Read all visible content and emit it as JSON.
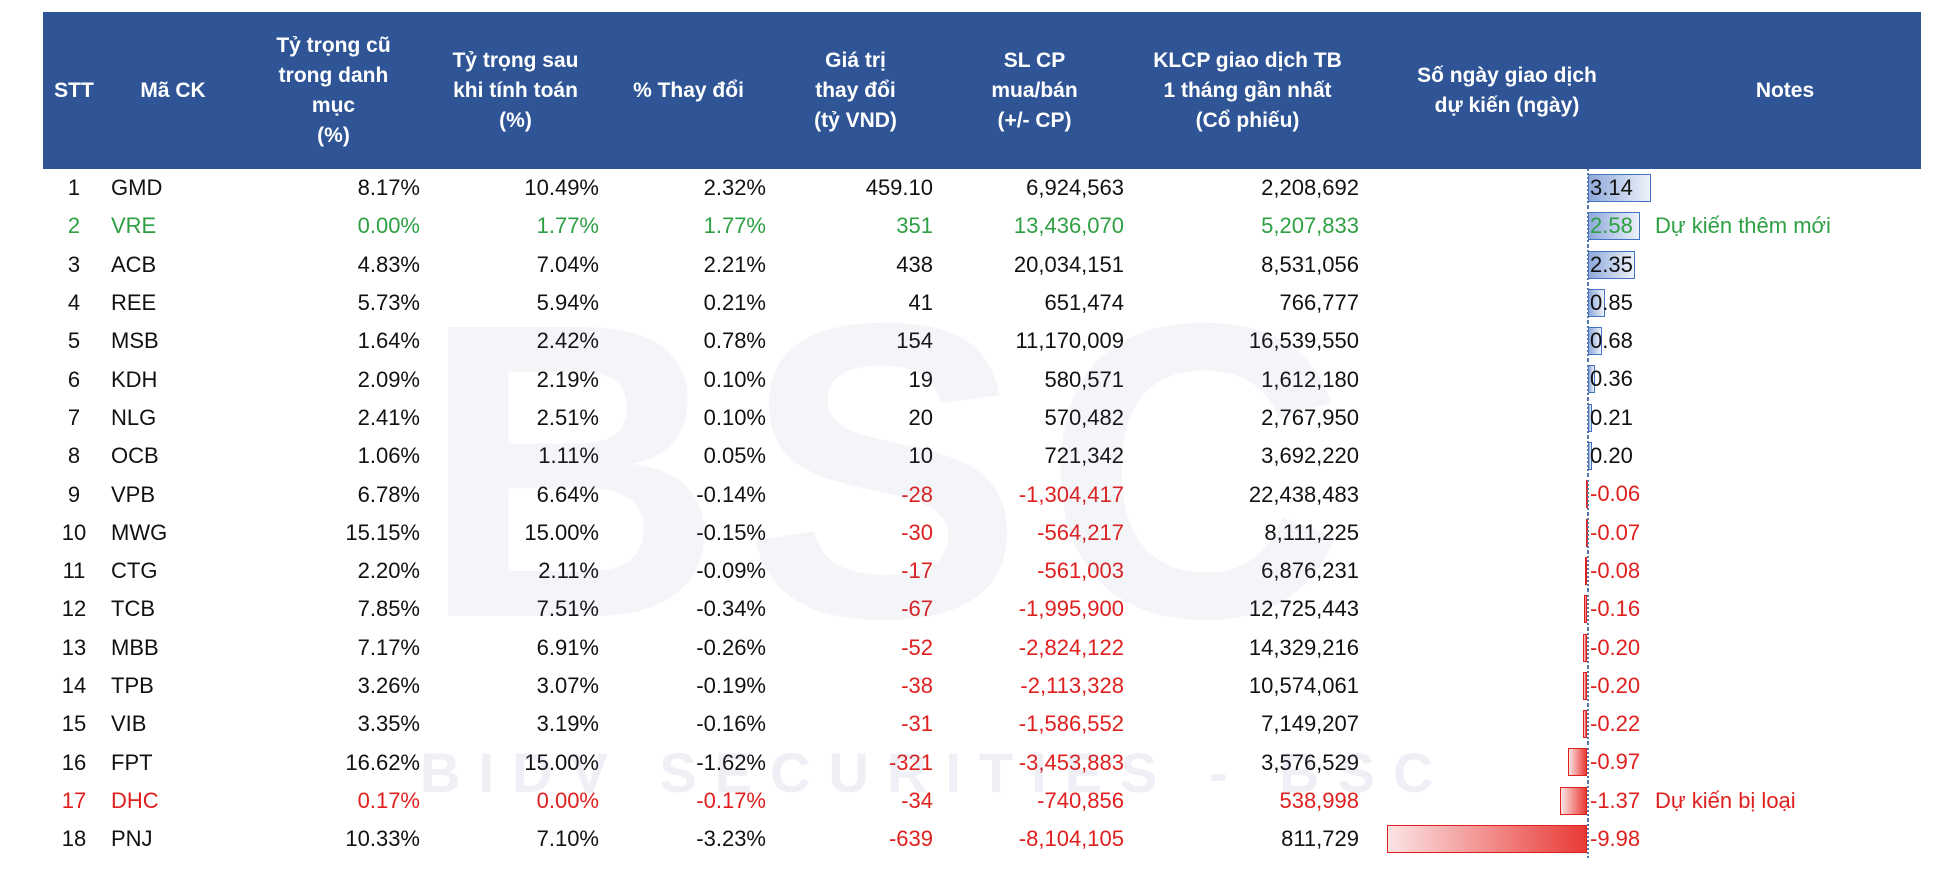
{
  "table": {
    "header": [
      "STT",
      "Mã CK",
      "Tỷ trọng cũ\ntrong danh\nmục\n(%)",
      "Tỷ trọng sau\nkhi tính toán\n(%)",
      "% Thay đổi",
      "Giá trị\nthay đổi\n(tỷ VND)",
      "SL CP\nmua/bán\n(+/- CP)",
      "KLCP giao dịch TB\n1 tháng gần nhất\n(Cổ phiếu)",
      "Số ngày giao dịch\ndự kiến (ngày)",
      "Notes"
    ],
    "rows": [
      [
        "1",
        "GMD",
        "8.17%",
        "10.49%",
        "2.32%",
        "459.10",
        "6,924,563",
        "2,208,692",
        "3.14"
      ],
      [
        "2",
        "VRE",
        "0.00%",
        "1.77%",
        "1.77%",
        "351",
        "13,436,070",
        "5,207,833",
        "2.58",
        "Dự kiến thêm mới"
      ],
      [
        "3",
        "ACB",
        "4.83%",
        "7.04%",
        "2.21%",
        "438",
        "20,034,151",
        "8,531,056",
        "2.35"
      ],
      [
        "4",
        "REE",
        "5.73%",
        "5.94%",
        "0.21%",
        "41",
        "651,474",
        "766,777",
        "0.85"
      ],
      [
        "5",
        "MSB",
        "1.64%",
        "2.42%",
        "0.78%",
        "154",
        "11,170,009",
        "16,539,550",
        "0.68"
      ],
      [
        "6",
        "KDH",
        "2.09%",
        "2.19%",
        "0.10%",
        "19",
        "580,571",
        "1,612,180",
        "0.36"
      ],
      [
        "7",
        "NLG",
        "2.41%",
        "2.51%",
        "0.10%",
        "20",
        "570,482",
        "2,767,950",
        "0.21"
      ],
      [
        "8",
        "OCB",
        "1.06%",
        "1.11%",
        "0.05%",
        "10",
        "721,342",
        "3,692,220",
        "0.20"
      ],
      [
        "9",
        "VPB",
        "6.78%",
        "6.64%",
        "-0.14%",
        "-28",
        "-1,304,417",
        "22,438,483",
        "-0.06"
      ],
      [
        "10",
        "MWG",
        "15.15%",
        "15.00%",
        "-0.15%",
        "-30",
        "-564,217",
        "8,111,225",
        "-0.07"
      ],
      [
        "11",
        "CTG",
        "2.20%",
        "2.11%",
        "-0.09%",
        "-17",
        "-561,003",
        "6,876,231",
        "-0.08"
      ],
      [
        "12",
        "TCB",
        "7.85%",
        "7.51%",
        "-0.34%",
        "-67",
        "-1,995,900",
        "12,725,443",
        "-0.16"
      ],
      [
        "13",
        "MBB",
        "7.17%",
        "6.91%",
        "-0.26%",
        "-52",
        "-2,824,122",
        "14,329,216",
        "-0.20"
      ],
      [
        "14",
        "TPB",
        "3.26%",
        "3.07%",
        "-0.19%",
        "-38",
        "-2,113,328",
        "10,574,061",
        "-0.20"
      ],
      [
        "15",
        "VIB",
        "3.35%",
        "3.19%",
        "-0.16%",
        "-31",
        "-1,586,552",
        "7,149,207",
        "-0.22"
      ],
      [
        "16",
        "FPT",
        "16.62%",
        "15.00%",
        "-1.62%",
        "-321",
        "-3,453,883",
        "3,576,529",
        "-0.97"
      ],
      [
        "17",
        "DHC",
        "0.17%",
        "0.00%",
        "-0.17%",
        "-34",
        "-740,856",
        "538,998",
        "-1.37",
        "Dự kiến bị loại"
      ],
      [
        "18",
        "PNJ",
        "10.33%",
        "7.10%",
        "-3.23%",
        "-639",
        "-8,104,105",
        "811,729",
        "-9.98"
      ]
    ]
  },
  "watermark": {
    "logo": "BSC",
    "text": "BIDV SECURITIES - BSC"
  }
}
